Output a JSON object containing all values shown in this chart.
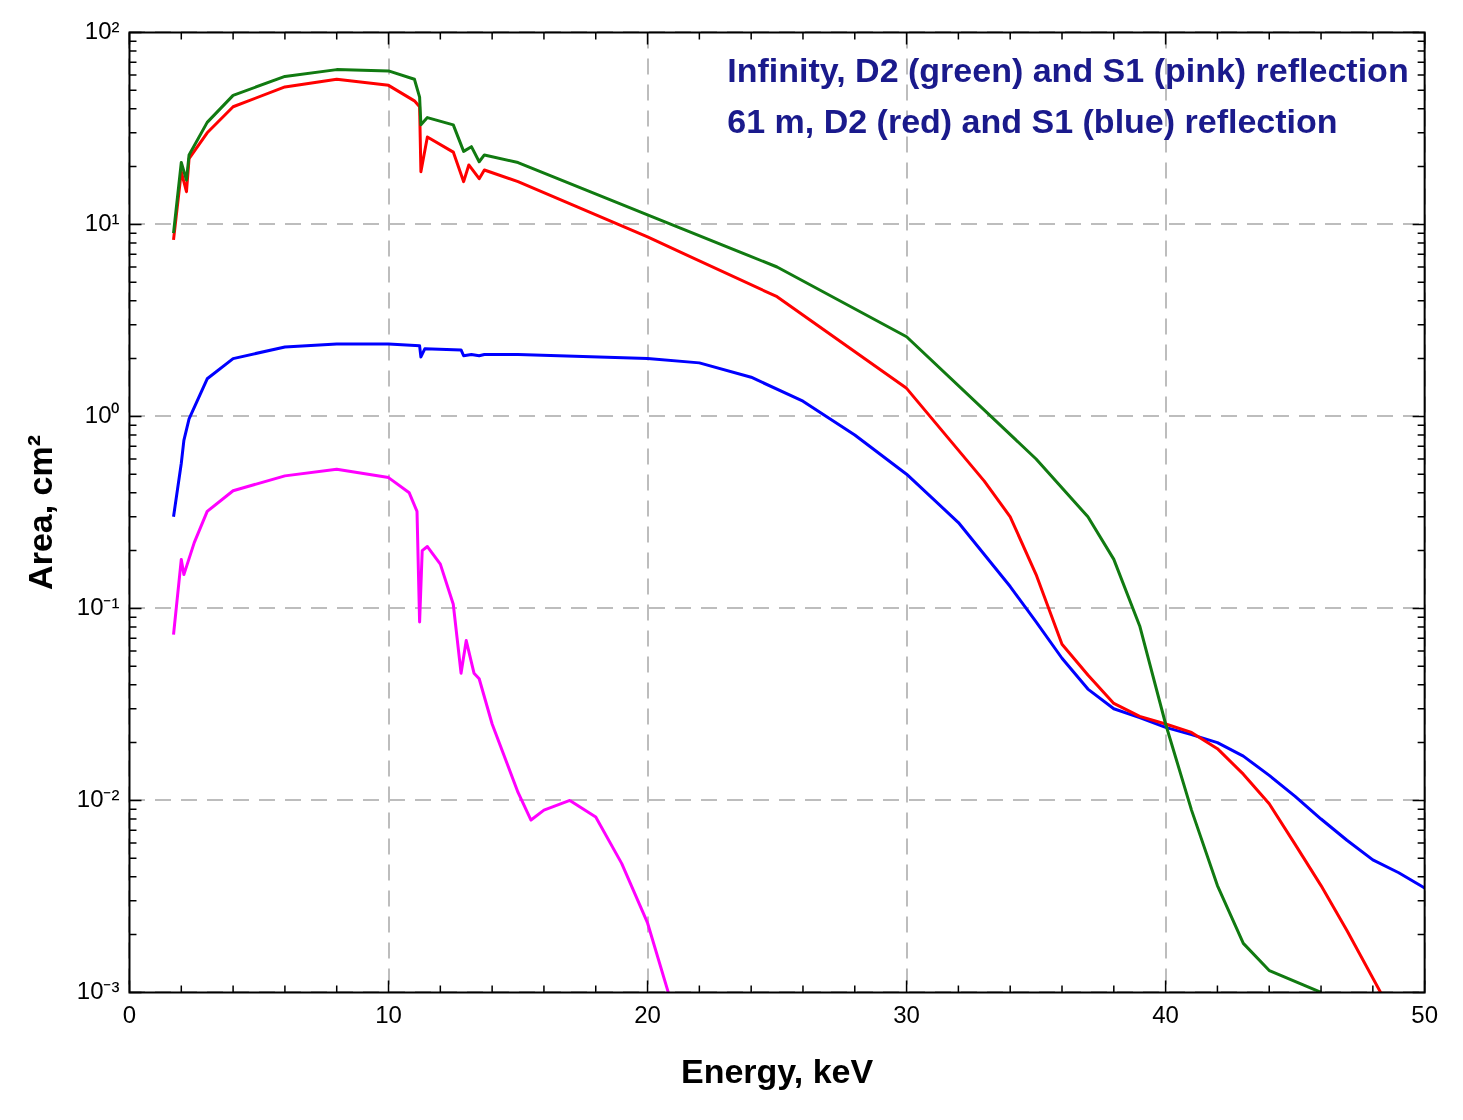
{
  "chart_data": {
    "type": "line",
    "xlabel": "Energy, keV",
    "ylabel": "Area, cm²",
    "log": "y",
    "grid": true,
    "marker": "none",
    "line_style": "solid",
    "annotations": [
      "Infinity, D2 (green) and S1 (pink) reflection",
      "61 m, D2 (red) and S1 (blue) reflection"
    ],
    "xlim": [
      0,
      50
    ],
    "ylim": [
      0.001,
      100
    ],
    "xticks": [
      0,
      {
        "value": 2,
        "label": null
      },
      {
        "value": 4,
        "label": null
      },
      {
        "value": 6,
        "label": null
      },
      {
        "value": 8,
        "label": null
      },
      10,
      {
        "value": 12,
        "label": null
      },
      {
        "value": 14,
        "label": null
      },
      {
        "value": 16,
        "label": null
      },
      {
        "value": 18,
        "label": null
      },
      20,
      {
        "value": 22,
        "label": null
      },
      {
        "value": 24,
        "label": null
      },
      {
        "value": 26,
        "label": null
      },
      {
        "value": 28,
        "label": null
      },
      30,
      {
        "value": 32,
        "label": null
      },
      {
        "value": 34,
        "label": null
      },
      {
        "value": 36,
        "label": null
      },
      {
        "value": 38,
        "label": null
      },
      40,
      {
        "value": 42,
        "label": null
      },
      {
        "value": 44,
        "label": null
      },
      {
        "value": 46,
        "label": null
      },
      {
        "value": 48,
        "label": null
      },
      50
    ],
    "yticks": [
      {
        "value": 0.001,
        "label": "10⁻³"
      },
      {
        "value": 0.002,
        "label": null
      },
      {
        "value": 0.003,
        "label": null
      },
      {
        "value": 0.004,
        "label": null
      },
      {
        "value": 0.005,
        "label": null
      },
      {
        "value": 0.006,
        "label": null
      },
      {
        "value": 0.007,
        "label": null
      },
      {
        "value": 0.008,
        "label": null
      },
      {
        "value": 0.009,
        "label": null
      },
      {
        "value": 0.01,
        "label": "10⁻²"
      },
      {
        "value": 0.02,
        "label": null
      },
      {
        "value": 0.03,
        "label": null
      },
      {
        "value": 0.04,
        "label": null
      },
      {
        "value": 0.05,
        "label": null
      },
      {
        "value": 0.06,
        "label": null
      },
      {
        "value": 0.07,
        "label": null
      },
      {
        "value": 0.08,
        "label": null
      },
      {
        "value": 0.09,
        "label": null
      },
      {
        "value": 0.1,
        "label": "10⁻¹"
      },
      {
        "value": 0.2,
        "label": null
      },
      {
        "value": 0.3,
        "label": null
      },
      {
        "value": 0.4,
        "label": null
      },
      {
        "value": 0.5,
        "label": null
      },
      {
        "value": 0.6,
        "label": null
      },
      {
        "value": 0.7,
        "label": null
      },
      {
        "value": 0.8,
        "label": null
      },
      {
        "value": 0.9,
        "label": null
      },
      {
        "value": 1,
        "label": "10⁰"
      },
      {
        "value": 2,
        "label": null
      },
      {
        "value": 3,
        "label": null
      },
      {
        "value": 4,
        "label": null
      },
      {
        "value": 5,
        "label": null
      },
      {
        "value": 6,
        "label": null
      },
      {
        "value": 7,
        "label": null
      },
      {
        "value": 8,
        "label": null
      },
      {
        "value": 9,
        "label": null
      },
      {
        "value": 10,
        "label": "10¹"
      },
      {
        "value": 20,
        "label": null
      },
      {
        "value": 30,
        "label": null
      },
      {
        "value": 40,
        "label": null
      },
      {
        "value": 50,
        "label": null
      },
      {
        "value": 60,
        "label": null
      },
      {
        "value": 70,
        "label": null
      },
      {
        "value": 80,
        "label": null
      },
      {
        "value": 90,
        "label": null
      },
      {
        "value": 100,
        "label": "10²"
      }
    ],
    "series": [
      {
        "color": "#117a11",
        "x": [
          1.7,
          2.0,
          2.2,
          2.3,
          3,
          4,
          6,
          8,
          10,
          11,
          11.2,
          11.25,
          11.5,
          12.5,
          12.9,
          13.2,
          13.5,
          13.7,
          15,
          20,
          25,
          30,
          35,
          37,
          38,
          39,
          40,
          41,
          42,
          43,
          44,
          46
        ],
        "values": [
          9,
          21,
          17,
          23,
          34,
          47,
          59,
          64,
          63,
          57,
          46,
          33,
          36,
          33,
          24,
          25.4,
          21.2,
          23,
          21,
          11.2,
          6,
          2.6,
          0.6,
          0.3,
          0.18,
          0.081,
          0.025,
          0.0089,
          0.0036,
          0.0018,
          0.0013,
          0.001
        ]
      },
      {
        "color": "#ff0000",
        "x": [
          1.7,
          2.0,
          2.2,
          2.3,
          3,
          4,
          6,
          8,
          10,
          11,
          11.2,
          11.25,
          11.5,
          12.5,
          12.9,
          13.1,
          13.5,
          13.7,
          15,
          20,
          25,
          30,
          33,
          34,
          35,
          36,
          37,
          38,
          39,
          40,
          41,
          42,
          43,
          44,
          45,
          46,
          47,
          48.3
        ],
        "values": [
          8.3,
          18.8,
          14.8,
          22,
          30,
          41,
          52,
          57,
          53,
          44,
          41,
          18.8,
          28.5,
          23.8,
          16.7,
          20.4,
          17.3,
          19.2,
          16.7,
          8.6,
          4.2,
          1.4,
          0.46,
          0.3,
          0.15,
          0.065,
          0.045,
          0.032,
          0.0274,
          0.025,
          0.0226,
          0.0186,
          0.0137,
          0.0096,
          0.0059,
          0.0036,
          0.0021,
          0.001
        ]
      },
      {
        "color": "#0000ff",
        "x": [
          1.7,
          2.0,
          2.1,
          2.3,
          3,
          4,
          6,
          8,
          10,
          11.2,
          11.25,
          11.4,
          12.8,
          12.9,
          13.2,
          13.5,
          13.7,
          15,
          20,
          22,
          24,
          26,
          28,
          30,
          32,
          34,
          35,
          36,
          37,
          38,
          39,
          40,
          41,
          42,
          43,
          44,
          45,
          46,
          47,
          48,
          49,
          50
        ],
        "values": [
          0.3,
          0.57,
          0.75,
          0.97,
          1.57,
          2,
          2.3,
          2.38,
          2.38,
          2.33,
          2.04,
          2.25,
          2.22,
          2.07,
          2.1,
          2.07,
          2.1,
          2.1,
          2,
          1.9,
          1.6,
          1.2,
          0.8,
          0.5,
          0.28,
          0.13,
          0.085,
          0.055,
          0.038,
          0.03,
          0.027,
          0.024,
          0.022,
          0.02,
          0.017,
          0.0135,
          0.0105,
          0.008,
          0.0062,
          0.0049,
          0.0042,
          0.0035
        ]
      },
      {
        "color": "#ff00ff",
        "x": [
          1.7,
          2.0,
          2.1,
          2.5,
          3,
          4,
          6,
          8,
          10,
          10.8,
          11.1,
          11.2,
          11.3,
          11.5,
          12,
          12.5,
          12.8,
          13,
          13.3,
          13.5,
          14,
          15,
          15.5,
          16,
          17,
          18,
          19,
          20,
          20.8
        ],
        "values": [
          0.073,
          0.18,
          0.15,
          0.22,
          0.32,
          0.41,
          0.49,
          0.53,
          0.48,
          0.4,
          0.32,
          0.085,
          0.2,
          0.21,
          0.17,
          0.105,
          0.046,
          0.068,
          0.046,
          0.043,
          0.025,
          0.011,
          0.0079,
          0.0089,
          0.01,
          0.0082,
          0.0047,
          0.0023,
          0.001
        ]
      }
    ]
  }
}
